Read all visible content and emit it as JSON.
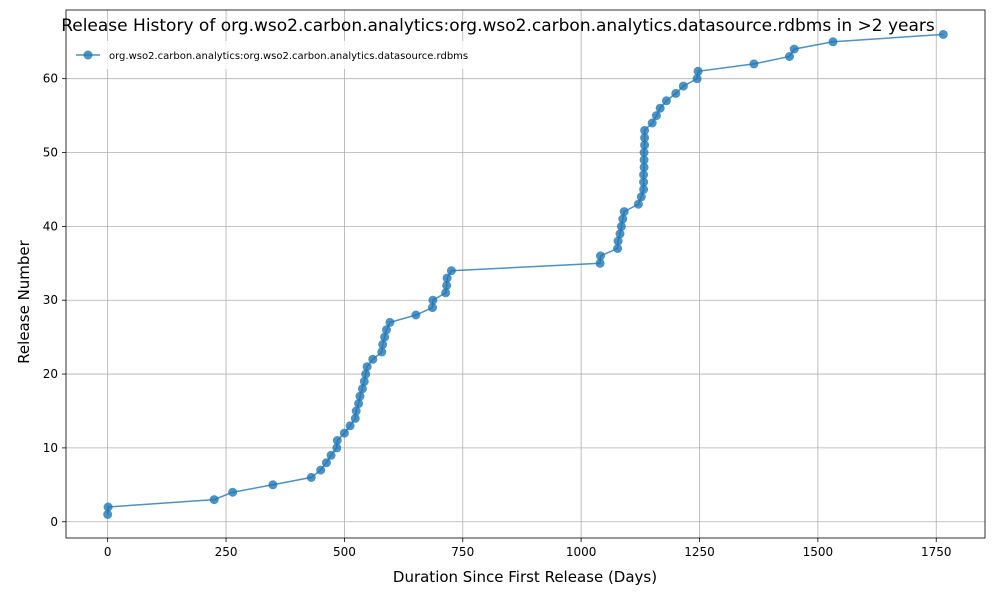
{
  "chart_data": {
    "type": "line",
    "title": "Release History of org.wso2.carbon.analytics:org.wso2.carbon.analytics.datasource.rdbms in >2 years",
    "xlabel": "Duration Since First Release (Days)",
    "ylabel": "Release Number",
    "xlim": [
      -88,
      1853
    ],
    "ylim": [
      -2.2,
      69.3
    ],
    "xticks": [
      0,
      250,
      500,
      750,
      1000,
      1250,
      1500,
      1750
    ],
    "yticks": [
      0,
      10,
      20,
      30,
      40,
      50,
      60
    ],
    "grid": true,
    "legend_position": "top-left",
    "series": [
      {
        "name": "org.wso2.carbon.analytics:org.wso2.carbon.analytics.datasource.rdbms",
        "color": "#1f77b4",
        "marker": "circle",
        "x": [
          0,
          1,
          225,
          264,
          349,
          430,
          450,
          462,
          472,
          484,
          485,
          500,
          512,
          523,
          525,
          530,
          533,
          538,
          542,
          545,
          548,
          560,
          579,
          581,
          585,
          589,
          596,
          651,
          686,
          687,
          714,
          716,
          717,
          726,
          1040,
          1041,
          1077,
          1078,
          1082,
          1085,
          1088,
          1091,
          1121,
          1127,
          1132,
          1132,
          1132,
          1133,
          1133,
          1133,
          1134,
          1134,
          1134,
          1150,
          1159,
          1167,
          1180,
          1200,
          1216,
          1245,
          1247,
          1365,
          1440,
          1450,
          1532,
          1765
        ],
        "y": [
          1,
          2,
          3,
          4,
          5,
          6,
          7,
          8,
          9,
          10,
          11,
          12,
          13,
          14,
          15,
          16,
          17,
          18,
          19,
          20,
          21,
          22,
          23,
          24,
          25,
          26,
          27,
          28,
          29,
          30,
          31,
          32,
          33,
          34,
          35,
          36,
          37,
          38,
          39,
          40,
          41,
          42,
          43,
          44,
          45,
          46,
          47,
          48,
          49,
          50,
          51,
          52,
          53,
          54,
          55,
          56,
          57,
          58,
          59,
          60,
          61,
          62,
          63,
          64,
          65,
          66
        ]
      }
    ]
  }
}
